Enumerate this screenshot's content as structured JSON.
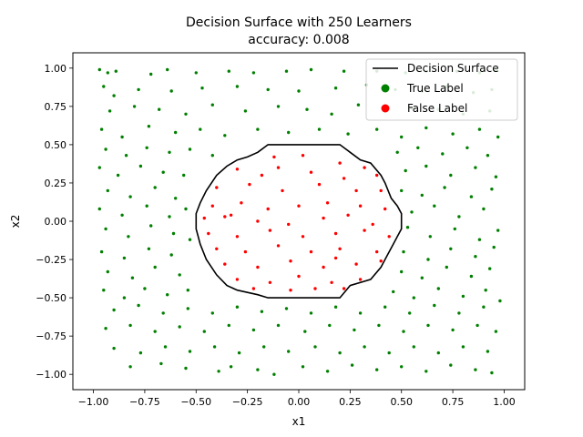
{
  "chart_data": {
    "type": "scatter",
    "title": "Decision Surface with 250 Learners",
    "subtitle": "accuracy: 0.008",
    "xlabel": "x1",
    "ylabel": "x2",
    "xlim": [
      -1.1,
      1.1
    ],
    "ylim": [
      -1.1,
      1.1
    ],
    "xticks": [
      -1.0,
      -0.75,
      -0.5,
      -0.25,
      0.0,
      0.25,
      0.5,
      0.75,
      1.0
    ],
    "yticks": [
      -1.0,
      -0.75,
      -0.5,
      -0.25,
      0.0,
      0.25,
      0.5,
      0.75,
      1.0
    ],
    "xtick_labels": [
      "−1.00",
      "−0.75",
      "−0.50",
      "−0.25",
      "0.00",
      "0.25",
      "0.50",
      "0.75",
      "1.00"
    ],
    "ytick_labels": [
      "−1.00",
      "−0.75",
      "−0.50",
      "−0.25",
      "0.00",
      "0.25",
      "0.50",
      "0.75",
      "1.00"
    ],
    "grid": false,
    "legend_position": "top-right",
    "legend": [
      {
        "label": "Decision Surface",
        "kind": "line",
        "color": "#000000"
      },
      {
        "label": "True Label",
        "kind": "marker",
        "color": "#008000"
      },
      {
        "label": "False Label",
        "kind": "marker",
        "color": "#ff0000"
      }
    ],
    "boundary": {
      "name": "Decision Surface",
      "color": "#000000",
      "x": [
        -0.2,
        -0.15,
        0.2,
        0.25,
        0.3,
        0.35,
        0.4,
        0.42,
        0.45,
        0.48,
        0.5,
        0.5,
        0.48,
        0.46,
        0.44,
        0.42,
        0.4,
        0.35,
        0.25,
        0.2,
        -0.15,
        -0.2,
        -0.3,
        -0.35,
        -0.4,
        -0.45,
        -0.48,
        -0.5,
        -0.5,
        -0.48,
        -0.45,
        -0.4,
        -0.35,
        -0.3,
        -0.25,
        -0.2
      ],
      "y": [
        0.45,
        0.5,
        0.5,
        0.45,
        0.4,
        0.38,
        0.3,
        0.25,
        0.15,
        0.1,
        0.05,
        -0.05,
        -0.1,
        -0.15,
        -0.2,
        -0.25,
        -0.3,
        -0.38,
        -0.42,
        -0.5,
        -0.5,
        -0.48,
        -0.45,
        -0.42,
        -0.35,
        -0.25,
        -0.15,
        -0.05,
        0.05,
        0.12,
        0.2,
        0.3,
        0.36,
        0.4,
        0.42,
        0.45
      ]
    },
    "series": [
      {
        "name": "True Label",
        "color": "#008000",
        "points": [
          [
            -0.97,
            0.99
          ],
          [
            -0.93,
            0.97
          ],
          [
            -0.89,
            0.98
          ],
          [
            -0.72,
            0.96
          ],
          [
            -0.64,
            0.99
          ],
          [
            -0.5,
            0.97
          ],
          [
            -0.34,
            0.98
          ],
          [
            -0.22,
            0.97
          ],
          [
            -0.06,
            0.98
          ],
          [
            0.06,
            0.99
          ],
          [
            0.22,
            0.98
          ],
          [
            0.38,
            0.98
          ],
          [
            0.52,
            0.97
          ],
          [
            0.62,
            0.98
          ],
          [
            0.77,
            0.98
          ],
          [
            0.88,
            0.97
          ],
          [
            0.96,
            0.99
          ],
          [
            -0.95,
            0.88
          ],
          [
            -0.9,
            0.82
          ],
          [
            -0.78,
            0.86
          ],
          [
            -0.62,
            0.85
          ],
          [
            -0.47,
            0.87
          ],
          [
            -0.3,
            0.88
          ],
          [
            -0.15,
            0.86
          ],
          [
            0.0,
            0.85
          ],
          [
            0.18,
            0.87
          ],
          [
            0.33,
            0.89
          ],
          [
            0.47,
            0.86
          ],
          [
            0.6,
            0.85
          ],
          [
            0.72,
            0.88
          ],
          [
            0.85,
            0.84
          ],
          [
            0.94,
            0.86
          ],
          [
            -0.92,
            0.72
          ],
          [
            -0.8,
            0.75
          ],
          [
            -0.68,
            0.73
          ],
          [
            -0.55,
            0.7
          ],
          [
            -0.42,
            0.76
          ],
          [
            -0.26,
            0.72
          ],
          [
            -0.1,
            0.75
          ],
          [
            0.04,
            0.73
          ],
          [
            0.16,
            0.7
          ],
          [
            0.29,
            0.76
          ],
          [
            0.42,
            0.72
          ],
          [
            0.55,
            0.74
          ],
          [
            0.68,
            0.73
          ],
          [
            0.8,
            0.7
          ],
          [
            0.93,
            0.72
          ],
          [
            -0.96,
            0.6
          ],
          [
            -0.86,
            0.55
          ],
          [
            -0.73,
            0.62
          ],
          [
            -0.6,
            0.58
          ],
          [
            -0.48,
            0.6
          ],
          [
            -0.36,
            0.56
          ],
          [
            -0.2,
            0.6
          ],
          [
            -0.05,
            0.58
          ],
          [
            0.1,
            0.6
          ],
          [
            0.24,
            0.57
          ],
          [
            0.38,
            0.6
          ],
          [
            0.5,
            0.55
          ],
          [
            0.62,
            0.61
          ],
          [
            0.75,
            0.57
          ],
          [
            0.88,
            0.6
          ],
          [
            0.97,
            0.55
          ],
          [
            -0.94,
            0.47
          ],
          [
            -0.84,
            0.43
          ],
          [
            -0.74,
            0.48
          ],
          [
            -0.63,
            0.45
          ],
          [
            -0.53,
            0.47
          ],
          [
            -0.42,
            0.43
          ],
          [
            0.48,
            0.45
          ],
          [
            0.58,
            0.48
          ],
          [
            0.7,
            0.44
          ],
          [
            0.82,
            0.48
          ],
          [
            0.92,
            0.43
          ],
          [
            -0.97,
            0.35
          ],
          [
            -0.88,
            0.3
          ],
          [
            -0.77,
            0.36
          ],
          [
            -0.66,
            0.32
          ],
          [
            -0.56,
            0.3
          ],
          [
            0.52,
            0.33
          ],
          [
            0.62,
            0.36
          ],
          [
            0.74,
            0.3
          ],
          [
            0.86,
            0.35
          ],
          [
            0.96,
            0.29
          ],
          [
            -0.93,
            0.2
          ],
          [
            -0.82,
            0.16
          ],
          [
            -0.7,
            0.22
          ],
          [
            -0.6,
            0.15
          ],
          [
            0.5,
            0.2
          ],
          [
            0.6,
            0.17
          ],
          [
            0.71,
            0.22
          ],
          [
            0.84,
            0.16
          ],
          [
            0.94,
            0.21
          ],
          [
            -0.97,
            0.08
          ],
          [
            -0.86,
            0.04
          ],
          [
            -0.74,
            0.1
          ],
          [
            -0.63,
            0.03
          ],
          [
            -0.55,
            0.08
          ],
          [
            0.55,
            0.06
          ],
          [
            0.66,
            0.1
          ],
          [
            0.78,
            0.03
          ],
          [
            0.9,
            0.08
          ],
          [
            -0.94,
            -0.05
          ],
          [
            -0.83,
            -0.1
          ],
          [
            -0.72,
            -0.03
          ],
          [
            -0.61,
            -0.08
          ],
          [
            -0.53,
            -0.12
          ],
          [
            0.53,
            -0.04
          ],
          [
            0.64,
            -0.1
          ],
          [
            0.76,
            -0.05
          ],
          [
            0.88,
            -0.12
          ],
          [
            0.97,
            -0.06
          ],
          [
            -0.96,
            -0.2
          ],
          [
            -0.85,
            -0.24
          ],
          [
            -0.73,
            -0.18
          ],
          [
            -0.62,
            -0.22
          ],
          [
            0.51,
            -0.2
          ],
          [
            0.63,
            -0.25
          ],
          [
            0.74,
            -0.18
          ],
          [
            0.86,
            -0.23
          ],
          [
            0.95,
            -0.17
          ],
          [
            -0.93,
            -0.33
          ],
          [
            -0.81,
            -0.37
          ],
          [
            -0.7,
            -0.3
          ],
          [
            -0.58,
            -0.35
          ],
          [
            0.5,
            -0.33
          ],
          [
            0.6,
            -0.37
          ],
          [
            0.72,
            -0.3
          ],
          [
            0.84,
            -0.36
          ],
          [
            0.93,
            -0.31
          ],
          [
            -0.95,
            -0.45
          ],
          [
            -0.85,
            -0.5
          ],
          [
            -0.75,
            -0.44
          ],
          [
            -0.64,
            -0.48
          ],
          [
            -0.54,
            -0.45
          ],
          [
            0.46,
            -0.46
          ],
          [
            0.56,
            -0.5
          ],
          [
            0.68,
            -0.44
          ],
          [
            0.8,
            -0.49
          ],
          [
            0.91,
            -0.45
          ],
          [
            -0.9,
            -0.58
          ],
          [
            -0.78,
            -0.55
          ],
          [
            -0.66,
            -0.6
          ],
          [
            -0.54,
            -0.57
          ],
          [
            -0.42,
            -0.6
          ],
          [
            -0.3,
            -0.56
          ],
          [
            -0.18,
            -0.59
          ],
          [
            -0.06,
            -0.57
          ],
          [
            0.06,
            -0.6
          ],
          [
            0.18,
            -0.56
          ],
          [
            0.3,
            -0.6
          ],
          [
            0.42,
            -0.56
          ],
          [
            0.54,
            -0.6
          ],
          [
            0.66,
            -0.55
          ],
          [
            0.78,
            -0.6
          ],
          [
            0.9,
            -0.56
          ],
          [
            0.98,
            -0.52
          ],
          [
            -0.94,
            -0.7
          ],
          [
            -0.82,
            -0.68
          ],
          [
            -0.7,
            -0.72
          ],
          [
            -0.58,
            -0.69
          ],
          [
            -0.46,
            -0.72
          ],
          [
            -0.34,
            -0.68
          ],
          [
            -0.22,
            -0.71
          ],
          [
            -0.1,
            -0.68
          ],
          [
            0.03,
            -0.72
          ],
          [
            0.15,
            -0.68
          ],
          [
            0.27,
            -0.71
          ],
          [
            0.39,
            -0.68
          ],
          [
            0.51,
            -0.72
          ],
          [
            0.63,
            -0.68
          ],
          [
            0.75,
            -0.71
          ],
          [
            0.87,
            -0.68
          ],
          [
            0.96,
            -0.72
          ],
          [
            -0.9,
            -0.83
          ],
          [
            -0.77,
            -0.86
          ],
          [
            -0.65,
            -0.82
          ],
          [
            -0.53,
            -0.85
          ],
          [
            -0.41,
            -0.82
          ],
          [
            -0.29,
            -0.86
          ],
          [
            -0.17,
            -0.82
          ],
          [
            -0.05,
            -0.85
          ],
          [
            0.08,
            -0.82
          ],
          [
            0.2,
            -0.86
          ],
          [
            0.32,
            -0.82
          ],
          [
            0.44,
            -0.86
          ],
          [
            0.56,
            -0.82
          ],
          [
            0.68,
            -0.86
          ],
          [
            0.8,
            -0.82
          ],
          [
            0.92,
            -0.85
          ],
          [
            -0.82,
            -0.95
          ],
          [
            -0.67,
            -0.93
          ],
          [
            -0.55,
            -0.96
          ],
          [
            -0.39,
            -0.98
          ],
          [
            -0.33,
            -0.95
          ],
          [
            -0.2,
            -0.97
          ],
          [
            -0.12,
            -1.0
          ],
          [
            0.02,
            -0.95
          ],
          [
            0.14,
            -0.98
          ],
          [
            0.26,
            -0.94
          ],
          [
            0.38,
            -0.97
          ],
          [
            0.5,
            -0.95
          ],
          [
            0.62,
            -0.98
          ],
          [
            0.74,
            -0.94
          ],
          [
            0.86,
            -0.97
          ],
          [
            0.94,
            -0.99
          ]
        ]
      },
      {
        "name": "False Label",
        "color": "#ff0000",
        "points": [
          [
            -0.12,
            0.42
          ],
          [
            0.02,
            0.43
          ],
          [
            0.2,
            0.38
          ],
          [
            0.32,
            0.35
          ],
          [
            -0.3,
            0.34
          ],
          [
            -0.1,
            0.35
          ],
          [
            0.06,
            0.32
          ],
          [
            0.22,
            0.28
          ],
          [
            0.38,
            0.3
          ],
          [
            -0.4,
            0.22
          ],
          [
            -0.24,
            0.24
          ],
          [
            -0.08,
            0.2
          ],
          [
            0.1,
            0.24
          ],
          [
            0.28,
            0.2
          ],
          [
            0.4,
            0.2
          ],
          [
            -0.42,
            0.1
          ],
          [
            -0.28,
            0.12
          ],
          [
            -0.15,
            0.08
          ],
          [
            0.0,
            0.1
          ],
          [
            0.14,
            0.12
          ],
          [
            0.3,
            0.1
          ],
          [
            0.42,
            0.08
          ],
          [
            -0.46,
            0.02
          ],
          [
            -0.36,
            0.03
          ],
          [
            -0.2,
            0.0
          ],
          [
            -0.05,
            -0.02
          ],
          [
            0.12,
            0.02
          ],
          [
            0.24,
            0.04
          ],
          [
            0.36,
            -0.02
          ],
          [
            -0.44,
            -0.08
          ],
          [
            -0.3,
            -0.1
          ],
          [
            -0.14,
            -0.06
          ],
          [
            0.02,
            -0.1
          ],
          [
            0.18,
            -0.08
          ],
          [
            0.32,
            -0.06
          ],
          [
            0.44,
            -0.1
          ],
          [
            -0.4,
            -0.18
          ],
          [
            -0.26,
            -0.2
          ],
          [
            -0.1,
            -0.16
          ],
          [
            0.06,
            -0.2
          ],
          [
            0.2,
            -0.18
          ],
          [
            0.38,
            -0.2
          ],
          [
            -0.36,
            -0.28
          ],
          [
            -0.2,
            -0.3
          ],
          [
            -0.04,
            -0.26
          ],
          [
            0.12,
            -0.3
          ],
          [
            0.28,
            -0.28
          ],
          [
            0.4,
            -0.26
          ],
          [
            -0.3,
            -0.38
          ],
          [
            -0.14,
            -0.4
          ],
          [
            0.0,
            -0.36
          ],
          [
            0.16,
            -0.4
          ],
          [
            0.3,
            -0.38
          ],
          [
            -0.22,
            -0.44
          ],
          [
            -0.04,
            -0.45
          ],
          [
            0.08,
            -0.44
          ],
          [
            0.22,
            -0.44
          ],
          [
            -0.33,
            0.04
          ],
          [
            0.18,
            -0.24
          ],
          [
            -0.18,
            0.3
          ]
        ]
      }
    ]
  }
}
